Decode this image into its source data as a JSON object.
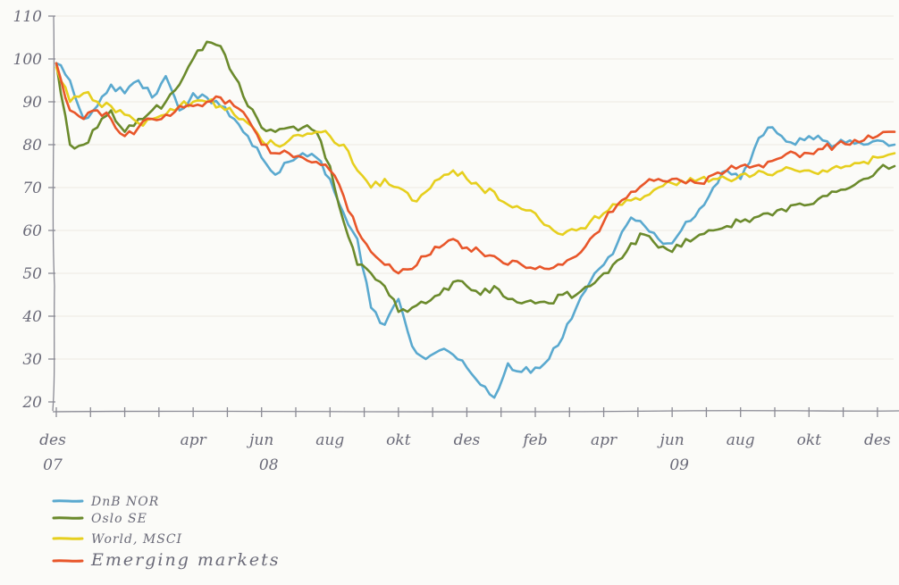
{
  "chart_data": {
    "type": "line",
    "title": "",
    "xlabel": "",
    "ylabel": "",
    "ylim": [
      20,
      110
    ],
    "yticks": [
      20,
      30,
      40,
      50,
      60,
      70,
      80,
      90,
      100,
      110
    ],
    "x_tick_labels": [
      {
        "month": 0,
        "label": "des"
      },
      {
        "month": 4,
        "label": "apr"
      },
      {
        "month": 6,
        "label": "jun"
      },
      {
        "month": 8,
        "label": "aug"
      },
      {
        "month": 10,
        "label": "okt"
      },
      {
        "month": 12,
        "label": "des"
      },
      {
        "month": 14,
        "label": "feb"
      },
      {
        "month": 16,
        "label": "apr"
      },
      {
        "month": 18,
        "label": "jun"
      },
      {
        "month": 20,
        "label": "aug"
      },
      {
        "month": 22,
        "label": "okt"
      },
      {
        "month": 24,
        "label": "des"
      }
    ],
    "year_labels": [
      {
        "month": 0,
        "label": "07"
      },
      {
        "month": 6,
        "label": "08"
      },
      {
        "month": 18,
        "label": "09"
      }
    ],
    "x_month_range": [
      0,
      24.5
    ],
    "legend_position": "bottom-left",
    "grid": false,
    "series": [
      {
        "name": "DnB NOR",
        "color": "#5aa9cf",
        "legend_style": "small",
        "x": [
          0,
          0.4,
          0.8,
          1.2,
          1.6,
          2,
          2.4,
          2.8,
          3.2,
          3.6,
          4,
          4.4,
          4.8,
          5.2,
          5.6,
          6,
          6.4,
          6.8,
          7.2,
          7.6,
          8,
          8.4,
          8.8,
          9.2,
          9.6,
          10,
          10.4,
          10.8,
          11.2,
          11.6,
          12,
          12.4,
          12.8,
          13.2,
          13.6,
          14,
          14.4,
          14.8,
          15.2,
          15.6,
          16,
          16.4,
          16.8,
          17.2,
          17.6,
          18,
          18.4,
          18.8,
          19.2,
          19.6,
          20,
          20.4,
          20.8,
          21.2,
          21.6,
          22,
          22.4,
          22.8,
          23.2,
          23.6,
          24,
          24.5
        ],
        "y": [
          99,
          95,
          86,
          89,
          94,
          92,
          95,
          91,
          96,
          88,
          92,
          91,
          89,
          86,
          82,
          77,
          73,
          76,
          78,
          77,
          72,
          64,
          58,
          42,
          38,
          44,
          33,
          30,
          32,
          31,
          28,
          24,
          21,
          29,
          27,
          28,
          30,
          35,
          42,
          48,
          52,
          57,
          63,
          61,
          58,
          57,
          62,
          65,
          70,
          74,
          72,
          79,
          84,
          82,
          80,
          82,
          81,
          80,
          81,
          80,
          81,
          80
        ]
      },
      {
        "name": "Oslo SE",
        "color": "#6b8a2c",
        "legend_style": "small",
        "x": [
          0,
          0.4,
          0.8,
          1.2,
          1.6,
          2,
          2.4,
          2.8,
          3.2,
          3.6,
          4,
          4.4,
          4.8,
          5.2,
          5.6,
          6,
          6.4,
          6.8,
          7.2,
          7.6,
          8,
          8.4,
          8.8,
          9.2,
          9.6,
          10,
          10.4,
          10.8,
          11.2,
          11.6,
          12,
          12.4,
          12.8,
          13.2,
          13.6,
          14,
          14.4,
          14.8,
          15.2,
          15.6,
          16,
          16.4,
          16.8,
          17.2,
          17.6,
          18,
          18.4,
          18.8,
          19.2,
          19.6,
          20,
          20.4,
          20.8,
          21.2,
          21.6,
          22,
          22.4,
          22.8,
          23.2,
          23.6,
          24,
          24.5
        ],
        "y": [
          99,
          80,
          80,
          84,
          88,
          83,
          86,
          88,
          90,
          94,
          100,
          104,
          103,
          96,
          89,
          84,
          83,
          84,
          84,
          83,
          75,
          62,
          52,
          50,
          47,
          41,
          42,
          43,
          45,
          48,
          47,
          45,
          47,
          44,
          43,
          43,
          43,
          45,
          45,
          47,
          50,
          53,
          57,
          59,
          56,
          55,
          58,
          59,
          60,
          61,
          62,
          63,
          64,
          65,
          66,
          66,
          68,
          69,
          70,
          72,
          74,
          75
        ]
      },
      {
        "name": "World, MSCI",
        "color": "#e6cf1e",
        "legend_style": "small",
        "x": [
          0,
          0.4,
          0.8,
          1.2,
          1.6,
          2,
          2.4,
          2.8,
          3.2,
          3.6,
          4,
          4.4,
          4.8,
          5.2,
          5.6,
          6,
          6.4,
          6.8,
          7.2,
          7.6,
          8,
          8.4,
          8.8,
          9.2,
          9.6,
          10,
          10.4,
          10.8,
          11.2,
          11.6,
          12,
          12.4,
          12.8,
          13.2,
          13.6,
          14,
          14.4,
          14.8,
          15.2,
          15.6,
          16,
          16.4,
          16.8,
          17.2,
          17.6,
          18,
          18.4,
          18.8,
          19.2,
          19.6,
          20,
          20.4,
          20.8,
          21.2,
          21.6,
          22,
          22.4,
          22.8,
          23.2,
          23.6,
          24,
          24.5
        ],
        "y": [
          98,
          90,
          92,
          90,
          89,
          87,
          85,
          86,
          87,
          89,
          90,
          90,
          89,
          87,
          85,
          81,
          80,
          81,
          82,
          83,
          82,
          80,
          74,
          70,
          72,
          70,
          67,
          69,
          72,
          74,
          72,
          70,
          69,
          66,
          65,
          64,
          61,
          59,
          60,
          62,
          64,
          66,
          67,
          68,
          70,
          71,
          71,
          72,
          72,
          72,
          73,
          73,
          73,
          74,
          74,
          74,
          74,
          75,
          75,
          76,
          77,
          78
        ]
      },
      {
        "name": "Emerging markets",
        "color": "#e8562a",
        "legend_style": "large",
        "x": [
          0,
          0.4,
          0.8,
          1.2,
          1.6,
          2,
          2.4,
          2.8,
          3.2,
          3.6,
          4,
          4.4,
          4.8,
          5.2,
          5.6,
          6,
          6.4,
          6.8,
          7.2,
          7.6,
          8,
          8.4,
          8.8,
          9.2,
          9.6,
          10,
          10.4,
          10.8,
          11.2,
          11.6,
          12,
          12.4,
          12.8,
          13.2,
          13.6,
          14,
          14.4,
          14.8,
          15.2,
          15.6,
          16,
          16.4,
          16.8,
          17.2,
          17.6,
          18,
          18.4,
          18.8,
          19.2,
          19.6,
          20,
          20.4,
          20.8,
          21.2,
          21.6,
          22,
          22.4,
          22.8,
          23.2,
          23.6,
          24,
          24.5
        ],
        "y": [
          99,
          88,
          86,
          88,
          86,
          82,
          84,
          86,
          87,
          89,
          89,
          90,
          91,
          89,
          86,
          80,
          78,
          78,
          77,
          76,
          74,
          68,
          60,
          55,
          52,
          50,
          51,
          54,
          56,
          58,
          56,
          55,
          54,
          52,
          52,
          51,
          51,
          52,
          54,
          58,
          62,
          66,
          69,
          71,
          72,
          72,
          71,
          71,
          73,
          74,
          75,
          75,
          76,
          77,
          78,
          78,
          79,
          80,
          80,
          81,
          82,
          83
        ]
      }
    ]
  }
}
